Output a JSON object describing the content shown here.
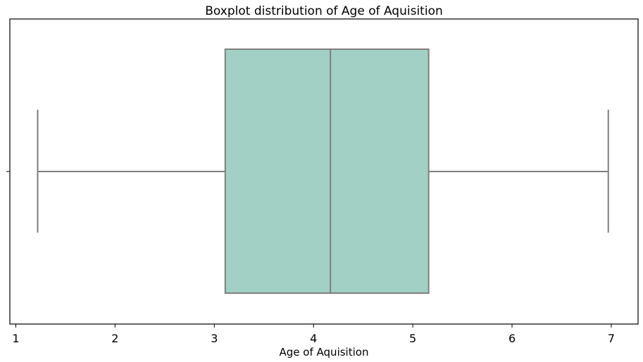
{
  "chart_data": {
    "type": "boxplot",
    "title": "Boxplot distribution of Age of Aquisition",
    "xlabel": "Age of Aquisition",
    "ylabel": "",
    "xlim": [
      0.94,
      7.27
    ],
    "xticks": [
      1,
      2,
      3,
      4,
      5,
      6,
      7
    ],
    "xtick_labels": [
      "1",
      "2",
      "3",
      "4",
      "5",
      "6",
      "7"
    ],
    "grid": false,
    "box": {
      "whisker_low": 1.22,
      "q1": 3.11,
      "median": 4.17,
      "q3": 5.16,
      "whisker_high": 6.97
    },
    "colors": {
      "box_fill": "#a2d0c5",
      "line": "#7f7f7f",
      "axis": "#000000"
    }
  }
}
